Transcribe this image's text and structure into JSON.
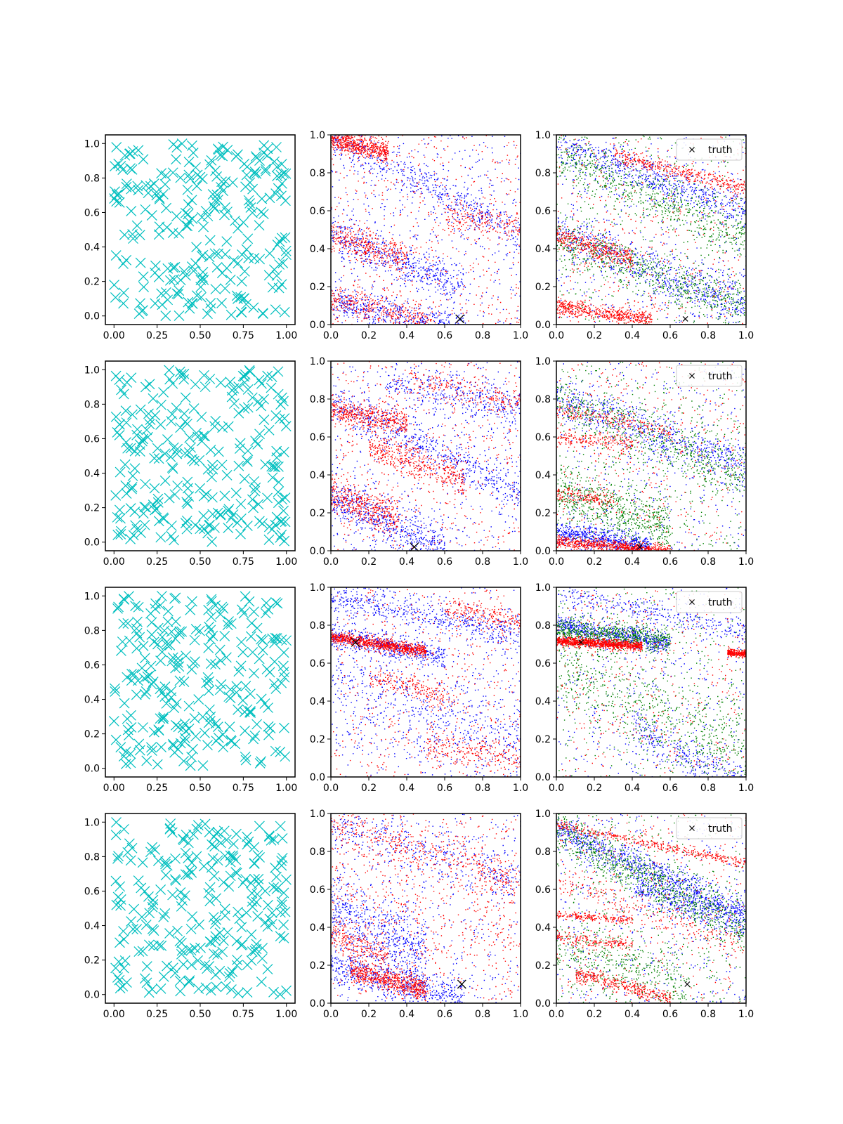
{
  "colors": {
    "cyan": "#00bfbf",
    "blue": "#0000ff",
    "red": "#ff0000",
    "green": "#008000",
    "truth": "#000000",
    "axes": "#000000",
    "background": "#ffffff"
  },
  "chart_data": {
    "type": "scatter",
    "layout": "grid 4 rows x 3 columns",
    "grid": false,
    "legend_label": "truth",
    "legend_placement": "top-right",
    "column_types": [
      {
        "column": 1,
        "description": "cyan x markers, 256 uniformly spread points",
        "xlim": [
          -0.05,
          1.05
        ],
        "ylim": [
          -0.05,
          1.05
        ],
        "xticks": [
          "0.00",
          "0.25",
          "0.50",
          "0.75",
          "1.00"
        ],
        "yticks": [
          "0.0",
          "0.2",
          "0.4",
          "0.6",
          "0.8",
          "1.0"
        ],
        "marker": "x",
        "color": "cyan",
        "points_per_panel": 256
      },
      {
        "column": 2,
        "description": "blue and red dense point clouds forming diagonal bands, large black x at truth",
        "xlim": [
          0,
          1
        ],
        "ylim": [
          0,
          1
        ],
        "xticks": [
          "0.0",
          "0.2",
          "0.4",
          "0.6",
          "0.8",
          "1.0"
        ],
        "yticks": [
          "0.0",
          "0.2",
          "0.4",
          "0.6",
          "0.8",
          "1.0"
        ],
        "series": [
          "blue",
          "red"
        ],
        "points_per_series": 2000
      },
      {
        "column": 3,
        "description": "blue, green and red dense point clouds, small black x at truth, legend 'truth'",
        "xlim": [
          0,
          1
        ],
        "ylim": [
          0,
          1
        ],
        "xticks": [
          "0.0",
          "0.2",
          "0.4",
          "0.6",
          "0.8",
          "1.0"
        ],
        "yticks": [
          "0.0",
          "0.2",
          "0.4",
          "0.6",
          "0.8",
          "1.0"
        ],
        "series": [
          "blue",
          "green",
          "red"
        ],
        "points_per_series": 1700,
        "legend": [
          "truth"
        ]
      }
    ],
    "rows": [
      {
        "truth": [
          0.68,
          0.03
        ],
        "col2_bands": [
          {
            "color": "red",
            "x0": 0.0,
            "x1": 0.3,
            "y0": 0.98,
            "slope": -0.22,
            "spread": 0.03,
            "weight": 3
          },
          {
            "color": "red",
            "x0": 0.0,
            "x1": 0.4,
            "y0": 0.47,
            "slope": -0.3,
            "spread": 0.04,
            "weight": 2
          },
          {
            "color": "red",
            "x0": 0.0,
            "x1": 0.55,
            "y0": 0.14,
            "slope": -0.25,
            "spread": 0.04,
            "weight": 2
          },
          {
            "color": "blue",
            "x0": 0.0,
            "x1": 1.0,
            "y0": 0.98,
            "slope": -0.5,
            "spread": 0.05,
            "weight": 2
          },
          {
            "color": "blue",
            "x0": 0.0,
            "x1": 0.7,
            "y0": 0.48,
            "slope": -0.4,
            "spread": 0.05,
            "weight": 2
          },
          {
            "color": "blue",
            "x0": 0.0,
            "x1": 0.7,
            "y0": 0.12,
            "slope": -0.2,
            "spread": 0.04,
            "weight": 2
          },
          {
            "color": "red",
            "x0": 0.6,
            "x1": 1.0,
            "y0": 0.7,
            "slope": -0.2,
            "spread": 0.04,
            "weight": 1
          }
        ],
        "col3_bands": [
          {
            "color": "red",
            "x0": 0.0,
            "x1": 0.5,
            "y0": 0.1,
            "slope": -0.15,
            "spread": 0.02,
            "weight": 3
          },
          {
            "color": "red",
            "x0": 0.0,
            "x1": 0.4,
            "y0": 0.47,
            "slope": -0.3,
            "spread": 0.03,
            "weight": 2
          },
          {
            "color": "red",
            "x0": 0.3,
            "x1": 1.0,
            "y0": 0.97,
            "slope": -0.25,
            "spread": 0.02,
            "weight": 2
          },
          {
            "color": "blue",
            "x0": 0.0,
            "x1": 1.0,
            "y0": 0.95,
            "slope": -0.35,
            "spread": 0.05,
            "weight": 2
          },
          {
            "color": "blue",
            "x0": 0.0,
            "x1": 1.0,
            "y0": 0.5,
            "slope": -0.4,
            "spread": 0.06,
            "weight": 2
          },
          {
            "color": "green",
            "x0": 0.0,
            "x1": 1.0,
            "y0": 0.9,
            "slope": -0.45,
            "spread": 0.06,
            "weight": 2
          },
          {
            "color": "green",
            "x0": 0.0,
            "x1": 1.0,
            "y0": 0.45,
            "slope": -0.35,
            "spread": 0.06,
            "weight": 2
          }
        ]
      },
      {
        "truth": [
          0.44,
          0.02
        ],
        "col2_bands": [
          {
            "color": "red",
            "x0": 0.0,
            "x1": 0.4,
            "y0": 0.75,
            "slope": -0.2,
            "spread": 0.03,
            "weight": 2
          },
          {
            "color": "red",
            "x0": 0.0,
            "x1": 0.35,
            "y0": 0.3,
            "slope": -0.35,
            "spread": 0.05,
            "weight": 2
          },
          {
            "color": "red",
            "x0": 0.2,
            "x1": 0.7,
            "y0": 0.62,
            "slope": -0.35,
            "spread": 0.04,
            "weight": 2
          },
          {
            "color": "red",
            "x0": 0.4,
            "x1": 1.0,
            "y0": 0.98,
            "slope": -0.2,
            "spread": 0.04,
            "weight": 1
          },
          {
            "color": "blue",
            "x0": 0.0,
            "x1": 1.0,
            "y0": 0.8,
            "slope": -0.5,
            "spread": 0.05,
            "weight": 2
          },
          {
            "color": "blue",
            "x0": 0.0,
            "x1": 0.6,
            "y0": 0.28,
            "slope": -0.45,
            "spread": 0.06,
            "weight": 2
          },
          {
            "color": "blue",
            "x0": 0.3,
            "x1": 1.0,
            "y0": 0.95,
            "slope": -0.2,
            "spread": 0.06,
            "weight": 1
          }
        ],
        "col3_bands": [
          {
            "color": "red",
            "x0": 0.0,
            "x1": 0.6,
            "y0": 0.05,
            "slope": -0.08,
            "spread": 0.015,
            "weight": 4
          },
          {
            "color": "red",
            "x0": 0.0,
            "x1": 0.6,
            "y0": 0.75,
            "slope": -0.2,
            "spread": 0.02,
            "weight": 1
          },
          {
            "color": "red",
            "x0": 0.0,
            "x1": 0.3,
            "y0": 0.3,
            "slope": -0.1,
            "spread": 0.02,
            "weight": 1
          },
          {
            "color": "red",
            "x0": 0.0,
            "x1": 0.4,
            "y0": 0.6,
            "slope": -0.1,
            "spread": 0.02,
            "weight": 1
          },
          {
            "color": "blue",
            "x0": 0.0,
            "x1": 1.0,
            "y0": 0.8,
            "slope": -0.35,
            "spread": 0.06,
            "weight": 2
          },
          {
            "color": "blue",
            "x0": 0.0,
            "x1": 0.5,
            "y0": 0.1,
            "slope": -0.15,
            "spread": 0.03,
            "weight": 2
          },
          {
            "color": "green",
            "x0": 0.0,
            "x1": 1.0,
            "y0": 0.8,
            "slope": -0.4,
            "spread": 0.07,
            "weight": 2
          },
          {
            "color": "green",
            "x0": 0.0,
            "x1": 0.6,
            "y0": 0.3,
            "slope": -0.3,
            "spread": 0.07,
            "weight": 2
          }
        ]
      },
      {
        "truth": [
          0.13,
          0.71
        ],
        "col2_bands": [
          {
            "color": "red",
            "x0": 0.0,
            "x1": 0.5,
            "y0": 0.74,
            "slope": -0.15,
            "spread": 0.015,
            "weight": 4
          },
          {
            "color": "red",
            "x0": 0.2,
            "x1": 0.65,
            "y0": 0.58,
            "slope": -0.25,
            "spread": 0.03,
            "weight": 1
          },
          {
            "color": "red",
            "x0": 0.6,
            "x1": 1.0,
            "y0": 0.98,
            "slope": -0.15,
            "spread": 0.03,
            "weight": 1
          },
          {
            "color": "red",
            "x0": 0.5,
            "x1": 1.0,
            "y0": 0.2,
            "slope": -0.1,
            "spread": 0.05,
            "weight": 1
          },
          {
            "color": "blue",
            "x0": 0.0,
            "x1": 0.6,
            "y0": 0.75,
            "slope": -0.2,
            "spread": 0.03,
            "weight": 2
          },
          {
            "color": "blue",
            "x0": 0.0,
            "x1": 1.0,
            "y0": 0.95,
            "slope": -0.2,
            "spread": 0.04,
            "weight": 2
          },
          {
            "color": "blue",
            "x0": 0.0,
            "x1": 1.0,
            "y0": 0.55,
            "slope": -0.4,
            "spread": 0.12,
            "weight": 2
          }
        ],
        "col3_bands": [
          {
            "color": "red",
            "x0": 0.0,
            "x1": 0.45,
            "y0": 0.72,
            "slope": -0.06,
            "spread": 0.012,
            "weight": 4
          },
          {
            "color": "red",
            "x0": 0.9,
            "x1": 1.0,
            "y0": 0.75,
            "slope": -0.1,
            "spread": 0.01,
            "weight": 1
          },
          {
            "color": "blue",
            "x0": 0.0,
            "x1": 0.6,
            "y0": 0.8,
            "slope": -0.15,
            "spread": 0.03,
            "weight": 2
          },
          {
            "color": "blue",
            "x0": 0.0,
            "x1": 1.0,
            "y0": 0.97,
            "slope": -0.2,
            "spread": 0.03,
            "weight": 1
          },
          {
            "color": "blue",
            "x0": 0.4,
            "x1": 1.0,
            "y0": 0.45,
            "slope": -0.5,
            "spread": 0.05,
            "weight": 1
          },
          {
            "color": "green",
            "x0": 0.0,
            "x1": 0.6,
            "y0": 0.78,
            "slope": -0.1,
            "spread": 0.03,
            "weight": 2
          },
          {
            "color": "green",
            "x0": 0.0,
            "x1": 1.0,
            "y0": 0.6,
            "slope": -0.5,
            "spread": 0.12,
            "weight": 2
          }
        ]
      },
      {
        "truth": [
          0.69,
          0.1
        ],
        "col2_bands": [
          {
            "color": "red",
            "x0": 0.1,
            "x1": 0.5,
            "y0": 0.2,
            "slope": -0.25,
            "spread": 0.03,
            "weight": 3
          },
          {
            "color": "red",
            "x0": 0.0,
            "x1": 0.3,
            "y0": 0.35,
            "slope": -0.3,
            "spread": 0.04,
            "weight": 1
          },
          {
            "color": "red",
            "x0": 0.0,
            "x1": 1.0,
            "y0": 0.95,
            "slope": -0.3,
            "spread": 0.06,
            "weight": 2
          },
          {
            "color": "red",
            "x0": 0.0,
            "x1": 1.0,
            "y0": 0.6,
            "slope": -0.2,
            "spread": 0.12,
            "weight": 1
          },
          {
            "color": "blue",
            "x0": 0.0,
            "x1": 0.7,
            "y0": 0.2,
            "slope": -0.25,
            "spread": 0.05,
            "weight": 2
          },
          {
            "color": "blue",
            "x0": 0.0,
            "x1": 1.0,
            "y0": 0.95,
            "slope": -0.3,
            "spread": 0.06,
            "weight": 1
          },
          {
            "color": "blue",
            "x0": 0.0,
            "x1": 0.5,
            "y0": 0.5,
            "slope": -0.5,
            "spread": 0.1,
            "weight": 2
          }
        ],
        "col3_bands": [
          {
            "color": "red",
            "x0": 0.0,
            "x1": 1.0,
            "y0": 0.94,
            "slope": -0.2,
            "spread": 0.012,
            "weight": 2
          },
          {
            "color": "red",
            "x0": 0.0,
            "x1": 0.4,
            "y0": 0.35,
            "slope": -0.1,
            "spread": 0.015,
            "weight": 1
          },
          {
            "color": "red",
            "x0": 0.0,
            "x1": 0.4,
            "y0": 0.47,
            "slope": -0.08,
            "spread": 0.01,
            "weight": 1
          },
          {
            "color": "red",
            "x0": 0.1,
            "x1": 0.6,
            "y0": 0.18,
            "slope": -0.25,
            "spread": 0.02,
            "weight": 2
          },
          {
            "color": "red",
            "x0": 0.0,
            "x1": 1.0,
            "y0": 0.65,
            "slope": -0.35,
            "spread": 0.04,
            "weight": 1
          },
          {
            "color": "blue",
            "x0": 0.0,
            "x1": 1.0,
            "y0": 0.92,
            "slope": -0.45,
            "spread": 0.04,
            "weight": 2
          },
          {
            "color": "blue",
            "x0": 0.4,
            "x1": 1.0,
            "y0": 0.75,
            "slope": -0.35,
            "spread": 0.04,
            "weight": 1
          },
          {
            "color": "green",
            "x0": 0.0,
            "x1": 1.0,
            "y0": 0.9,
            "slope": -0.5,
            "spread": 0.06,
            "weight": 2
          },
          {
            "color": "green",
            "x0": 0.0,
            "x1": 0.7,
            "y0": 0.3,
            "slope": -0.3,
            "spread": 0.08,
            "weight": 1
          }
        ]
      }
    ]
  }
}
